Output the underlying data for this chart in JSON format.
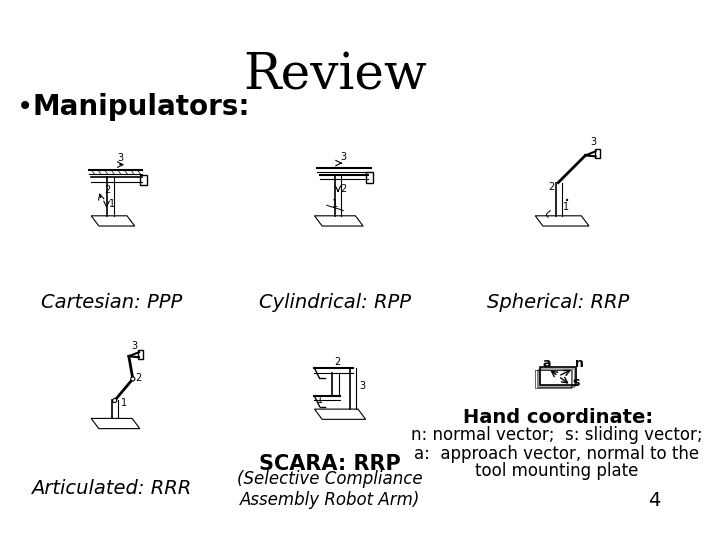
{
  "title": "Review",
  "bullet": "Manipulators:",
  "label_cartesian": "Cartesian: PPP",
  "label_cylindrical": "Cylindrical: RPP",
  "label_spherical": "Spherical: RRP",
  "label_articulated": "Articulated: RRR",
  "label_scara": "SCARA: RRP",
  "label_scara_sub": "(Selective Compliance\nAssembly Robot Arm)",
  "label_hand": "Hand coordinate:",
  "label_hand_n": "n: normal vector;  s: sliding vector;",
  "label_hand_a": "a:  approach vector, normal to the",
  "label_hand_tool": "tool mounting plate",
  "page_num": "4",
  "bg_color": "#ffffff",
  "title_fontsize": 36,
  "bullet_fontsize": 20,
  "label_fontsize": 14,
  "hand_title_fontsize": 14,
  "hand_text_fontsize": 12
}
